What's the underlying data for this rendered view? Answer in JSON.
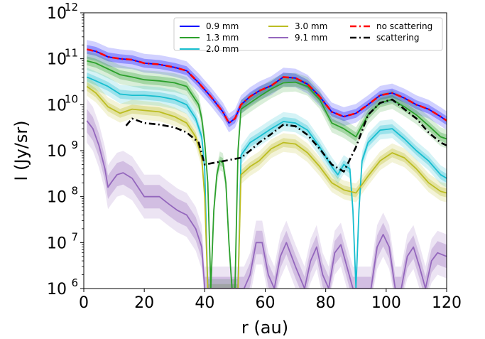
{
  "chart_data": {
    "type": "line",
    "xlabel": "r (au)",
    "ylabel": "I (Jy/sr)",
    "xlim": [
      0,
      120
    ],
    "ylim": [
      1000000,
      1000000000000
    ],
    "yscale": "log",
    "grid": false,
    "legend_position": "top-right",
    "x_ticks": [
      {
        "value": 0,
        "label": "0"
      },
      {
        "value": 20,
        "label": "20"
      },
      {
        "value": 40,
        "label": "40"
      },
      {
        "value": 60,
        "label": "60"
      },
      {
        "value": 80,
        "label": "80"
      },
      {
        "value": 100,
        "label": "100"
      },
      {
        "value": 120,
        "label": "120"
      }
    ],
    "y_ticks": [
      {
        "value": 1000000,
        "base": "10",
        "exp": "6"
      },
      {
        "value": 10000000,
        "base": "10",
        "exp": "7"
      },
      {
        "value": 100000000,
        "base": "10",
        "exp": "8"
      },
      {
        "value": 1000000000,
        "base": "10",
        "exp": "9"
      },
      {
        "value": 10000000000,
        "base": "10",
        "exp": "10"
      },
      {
        "value": 100000000000,
        "base": "10",
        "exp": "11"
      },
      {
        "value": 1000000000000,
        "base": "10",
        "exp": "12"
      }
    ],
    "legend": [
      {
        "label": "0.9 mm",
        "color": "#0000ff",
        "style": "solid"
      },
      {
        "label": "1.3 mm",
        "color": "#2ca02c",
        "style": "solid"
      },
      {
        "label": "2.0 mm",
        "color": "#17becf",
        "style": "solid"
      },
      {
        "label": "3.0 mm",
        "color": "#bcbd22",
        "style": "solid"
      },
      {
        "label": "9.1 mm",
        "color": "#9467bd",
        "style": "solid"
      },
      {
        "label": "no scattering",
        "color": "#ff0000",
        "style": "dashdot"
      },
      {
        "label": "scattering",
        "color": "#000000",
        "style": "dashdot"
      }
    ],
    "series": [
      {
        "name": "0.9 mm",
        "color": "#0000ff",
        "x": [
          1,
          4,
          8,
          12,
          16,
          20,
          25,
          30,
          34,
          38,
          42,
          46,
          48,
          50,
          52,
          55,
          58,
          62,
          66,
          70,
          74,
          78,
          82,
          86,
          90,
          94,
          98,
          102,
          106,
          110,
          114,
          118,
          120
        ],
        "y": [
          160000000000.0,
          145000000000.0,
          110000000000.0,
          100000000000.0,
          95000000000.0,
          80000000000.0,
          75000000000.0,
          65000000000.0,
          55000000000.0,
          30000000000.0,
          15000000000.0,
          7000000000.0,
          4000000000.0,
          5000000000.0,
          10000000000.0,
          15000000000.0,
          20000000000.0,
          26000000000.0,
          40000000000.0,
          38000000000.0,
          28000000000.0,
          15000000000.0,
          7000000000.0,
          5500000000.0,
          6500000000.0,
          10000000000.0,
          16000000000.0,
          18000000000.0,
          14000000000.0,
          10000000000.0,
          8000000000.0,
          5500000000.0,
          4500000000.0
        ]
      },
      {
        "name": "1.3 mm",
        "color": "#2ca02c",
        "x": [
          1,
          4,
          8,
          12,
          16,
          20,
          25,
          30,
          34,
          38,
          39,
          40,
          41,
          42,
          43,
          44,
          45,
          46,
          47,
          48,
          49,
          50,
          51,
          52,
          55,
          58,
          62,
          66,
          70,
          74,
          78,
          82,
          86,
          90,
          94,
          98,
          102,
          106,
          110,
          114,
          118,
          120
        ],
        "y": [
          90000000000.0,
          80000000000.0,
          60000000000.0,
          45000000000.0,
          40000000000.0,
          35000000000.0,
          33000000000.0,
          30000000000.0,
          25000000000.0,
          10000000000.0,
          5000000000.0,
          1500000000.0,
          200000000.0,
          1000000.0,
          50000000.0,
          300000000.0,
          600000000.0,
          550000000.0,
          200000000.0,
          10000000.0,
          1000000.0,
          1000000.0,
          1000000000.0,
          8000000000.0,
          11000000000.0,
          15000000000.0,
          22000000000.0,
          30000000000.0,
          31000000000.0,
          25000000000.0,
          13000000000.0,
          4000000000.0,
          3000000000.0,
          2000000000.0,
          6000000000.0,
          11000000000.0,
          13000000000.0,
          9000000000.0,
          6000000000.0,
          3500000000.0,
          2000000000.0,
          1800000000.0
        ]
      },
      {
        "name": "2.0 mm",
        "color": "#17becf",
        "x": [
          1,
          4,
          8,
          12,
          16,
          20,
          25,
          30,
          34,
          37,
          39,
          40,
          41,
          42,
          43,
          45,
          47,
          49,
          50,
          51,
          52,
          55,
          58,
          62,
          66,
          70,
          74,
          78,
          82,
          84,
          86,
          88,
          89,
          90,
          91,
          92,
          94,
          98,
          102,
          106,
          110,
          114,
          118,
          120
        ],
        "y": [
          40000000000.0,
          33000000000.0,
          25000000000.0,
          17000000000.0,
          16000000000.0,
          16000000000.0,
          15000000000.0,
          13000000000.0,
          10000000000.0,
          5000000000.0,
          2000000000.0,
          400000000.0,
          1000000.0,
          1000000.0,
          1000000.0,
          1000000.0,
          1000000.0,
          1000000.0,
          1000000.0,
          1000000.0,
          800000000.0,
          1500000000.0,
          2000000000.0,
          3000000000.0,
          4300000000.0,
          4000000000.0,
          2800000000.0,
          1200000000.0,
          450000000.0,
          300000000.0,
          500000000.0,
          400000000.0,
          50000000.0,
          1000000.0,
          50000000.0,
          600000000.0,
          1500000000.0,
          2800000000.0,
          3000000000.0,
          1800000000.0,
          1000000000.0,
          600000000.0,
          300000000.0,
          250000000.0
        ]
      },
      {
        "name": "3.0 mm",
        "color": "#bcbd22",
        "x": [
          1,
          4,
          8,
          12,
          16,
          20,
          25,
          30,
          34,
          37,
          39,
          40,
          41,
          42,
          43,
          45,
          47,
          49,
          50,
          51,
          52,
          55,
          58,
          62,
          66,
          70,
          74,
          78,
          82,
          86,
          90,
          94,
          98,
          102,
          106,
          110,
          114,
          118,
          120
        ],
        "y": [
          25000000000.0,
          18000000000.0,
          9000000000.0,
          6500000000.0,
          8000000000.0,
          7500000000.0,
          7000000000.0,
          5500000000.0,
          4000000000.0,
          2000000000.0,
          700000000.0,
          100000000.0,
          1000000.0,
          1000000.0,
          1000000.0,
          1000000.0,
          1000000.0,
          1000000.0,
          1000000.0,
          1000000.0,
          300000000.0,
          450000000.0,
          600000000.0,
          1100000000.0,
          1500000000.0,
          1400000000.0,
          900000000.0,
          450000000.0,
          200000000.0,
          140000000.0,
          120000000.0,
          280000000.0,
          600000000.0,
          900000000.0,
          700000000.0,
          400000000.0,
          200000000.0,
          130000000.0,
          120000000.0
        ]
      },
      {
        "name": "9.1 mm",
        "color": "#9467bd",
        "x": [
          1,
          3,
          5,
          7,
          8,
          9,
          11,
          13,
          16,
          20,
          25,
          28,
          31,
          34,
          37,
          39,
          40,
          41,
          43,
          45,
          47,
          49,
          51,
          53,
          55,
          57,
          59,
          61,
          63,
          65,
          67,
          70,
          73,
          75,
          77,
          79,
          81,
          83,
          85,
          87,
          89,
          91,
          93,
          95,
          97,
          99,
          101,
          103,
          105,
          107,
          109,
          111,
          113,
          115,
          117,
          120
        ],
        "y": [
          4500000000.0,
          3000000000.0,
          1300000000.0,
          400000000.0,
          160000000.0,
          200000000.0,
          300000000.0,
          330000000.0,
          250000000.0,
          100000000.0,
          100000000.0,
          70000000.0,
          50000000.0,
          40000000.0,
          20000000.0,
          8000000.0,
          1000000.0,
          1000000.0,
          1000000.0,
          1000000.0,
          1000000.0,
          1000000.0,
          1000000.0,
          1000000.0,
          2000000.0,
          10000000.0,
          10000000.0,
          2000000.0,
          1000000.0,
          5000000.0,
          10000000.0,
          3000000.0,
          1000000.0,
          4000000.0,
          8000000.0,
          2000000.0,
          1000000.0,
          6000000.0,
          9000000.0,
          3000000.0,
          1000000.0,
          1000000.0,
          1000000.0,
          1000000.0,
          8000000.0,
          15000000.0,
          8000000.0,
          1000000.0,
          1000000.0,
          5000000.0,
          8000000.0,
          3000000.0,
          1000000.0,
          4000000.0,
          6000000.0,
          5000000.0
        ]
      },
      {
        "name": "no scattering",
        "color": "#ff0000",
        "dash": "dashdot",
        "x": [
          1,
          4,
          8,
          12,
          16,
          20,
          25,
          30,
          34,
          38,
          42,
          46,
          48,
          50,
          52,
          55,
          58,
          62,
          66,
          70,
          74,
          78,
          82,
          86,
          90,
          94,
          98,
          102,
          106,
          110,
          114,
          118,
          120
        ],
        "y": [
          160000000000.0,
          145000000000.0,
          110000000000.0,
          100000000000.0,
          95000000000.0,
          80000000000.0,
          75000000000.0,
          65000000000.0,
          55000000000.0,
          30000000000.0,
          15000000000.0,
          7000000000.0,
          4000000000.0,
          5000000000.0,
          10000000000.0,
          15000000000.0,
          20000000000.0,
          26000000000.0,
          40000000000.0,
          38000000000.0,
          28000000000.0,
          15000000000.0,
          7000000000.0,
          5500000000.0,
          6500000000.0,
          10000000000.0,
          16000000000.0,
          18000000000.0,
          14000000000.0,
          10000000000.0,
          8000000000.0,
          5500000000.0,
          4500000000.0
        ]
      },
      {
        "name": "scattering",
        "color": "#000000",
        "dash": "dashdot",
        "x": [
          14,
          16,
          20,
          25,
          30,
          34,
          38,
          40,
          52,
          55,
          58,
          62,
          66,
          70,
          74,
          78,
          82,
          86,
          90,
          94,
          98,
          102,
          106,
          110,
          114,
          118,
          120
        ],
        "y": [
          3500000000.0,
          5000000000.0,
          4000000000.0,
          3700000000.0,
          3200000000.0,
          2500000000.0,
          1500000000.0,
          500000000.0,
          700000000.0,
          1000000000.0,
          1500000000.0,
          2300000000.0,
          3700000000.0,
          3400000000.0,
          2200000000.0,
          1100000000.0,
          500000000.0,
          350000000.0,
          1200000000.0,
          6000000000.0,
          11000000000.0,
          13000000000.0,
          8000000000.0,
          5000000000.0,
          2500000000.0,
          1500000000.0,
          1300000000.0
        ]
      }
    ]
  }
}
